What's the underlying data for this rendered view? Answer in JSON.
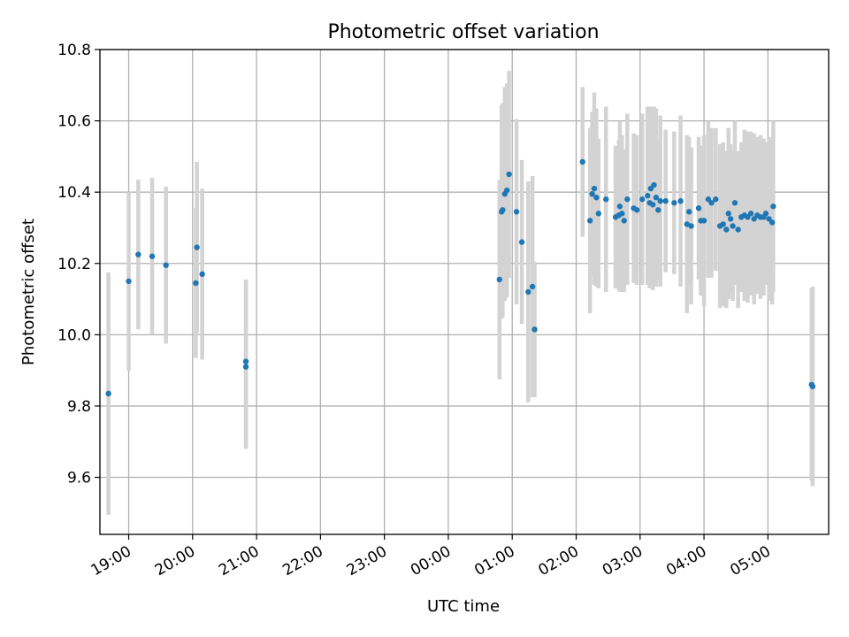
{
  "chart_data": {
    "type": "scatter",
    "title": "Photometric offset variation",
    "xlabel": "UTC time",
    "ylabel": "Photometric offset",
    "xlim": [
      "18:33",
      "05:57"
    ],
    "ylim": [
      9.44,
      10.8
    ],
    "xticks": [
      "19:00",
      "20:00",
      "21:00",
      "22:00",
      "23:00",
      "00:00",
      "01:00",
      "02:00",
      "03:00",
      "04:00",
      "05:00"
    ],
    "yticks": [
      "9.6",
      "9.8",
      "10.0",
      "10.2",
      "10.4",
      "10.6",
      "10.8"
    ],
    "grid": true,
    "colors": {
      "point": "#1f77b4",
      "errorbar": "#d3d3d3",
      "grid": "#b0b0b0"
    },
    "series": [
      {
        "x": [
          "18:41",
          "19:00",
          "19:09",
          "19:22",
          "19:35",
          "20:03",
          "20:04",
          "20:09",
          "20:50",
          "20:50",
          "00:48",
          "00:50",
          "00:51",
          "00:53",
          "00:55",
          "00:57",
          "01:04",
          "01:09",
          "01:15",
          "01:19",
          "01:21",
          "02:06",
          "02:13",
          "02:15",
          "02:17",
          "02:19",
          "02:21",
          "02:28",
          "02:37",
          "02:40",
          "02:41",
          "02:43",
          "02:45",
          "02:48",
          "02:54",
          "02:57",
          "03:02",
          "03:07",
          "03:09",
          "03:10",
          "03:12",
          "03:13",
          "03:15",
          "03:17",
          "03:19",
          "03:24",
          "03:32",
          "03:38",
          "03:44",
          "03:46",
          "03:48",
          "03:55",
          "03:57",
          "04:00",
          "04:04",
          "04:07",
          "04:11",
          "04:15",
          "04:18",
          "04:21",
          "04:23",
          "04:25",
          "04:27",
          "04:29",
          "04:32",
          "04:35",
          "04:38",
          "04:41",
          "04:44",
          "04:47",
          "04:50",
          "04:53",
          "04:56",
          "04:58",
          "05:01",
          "05:04",
          "05:05",
          "05:41",
          "05:42"
        ],
        "y": [
          9.835,
          10.15,
          10.225,
          10.22,
          10.195,
          10.145,
          10.245,
          10.17,
          9.925,
          9.91,
          10.155,
          10.345,
          10.35,
          10.395,
          10.405,
          10.45,
          10.345,
          10.26,
          10.12,
          10.135,
          10.015,
          10.485,
          10.32,
          10.395,
          10.41,
          10.385,
          10.34,
          10.38,
          10.33,
          10.335,
          10.36,
          10.34,
          10.32,
          10.38,
          10.355,
          10.35,
          10.38,
          10.39,
          10.37,
          10.41,
          10.365,
          10.42,
          10.385,
          10.35,
          10.375,
          10.375,
          10.37,
          10.375,
          10.31,
          10.345,
          10.305,
          10.355,
          10.32,
          10.32,
          10.38,
          10.37,
          10.38,
          10.305,
          10.31,
          10.295,
          10.34,
          10.325,
          10.305,
          10.37,
          10.295,
          10.33,
          10.335,
          10.33,
          10.34,
          10.325,
          10.335,
          10.33,
          10.33,
          10.34,
          10.325,
          10.315,
          10.36,
          9.86,
          9.855
        ],
        "yerr": [
          0.34,
          0.25,
          0.21,
          0.22,
          0.22,
          0.21,
          0.24,
          0.24,
          0.23,
          0.23,
          0.28,
          0.3,
          0.3,
          0.3,
          0.3,
          0.29,
          0.26,
          0.23,
          0.31,
          0.31,
          0.19,
          0.21,
          0.26,
          0.23,
          0.27,
          0.25,
          0.21,
          0.26,
          0.2,
          0.21,
          0.24,
          0.22,
          0.2,
          0.24,
          0.21,
          0.21,
          0.24,
          0.25,
          0.24,
          0.23,
          0.24,
          0.22,
          0.25,
          0.2,
          0.24,
          0.2,
          0.2,
          0.24,
          0.25,
          0.21,
          0.22,
          0.2,
          0.21,
          0.24,
          0.22,
          0.21,
          0.2,
          0.23,
          0.23,
          0.22,
          0.24,
          0.21,
          0.21,
          0.23,
          0.22,
          0.21,
          0.24,
          0.24,
          0.23,
          0.24,
          0.22,
          0.23,
          0.22,
          0.2,
          0.23,
          0.23,
          0.24,
          0.27,
          0.28
        ]
      }
    ]
  }
}
